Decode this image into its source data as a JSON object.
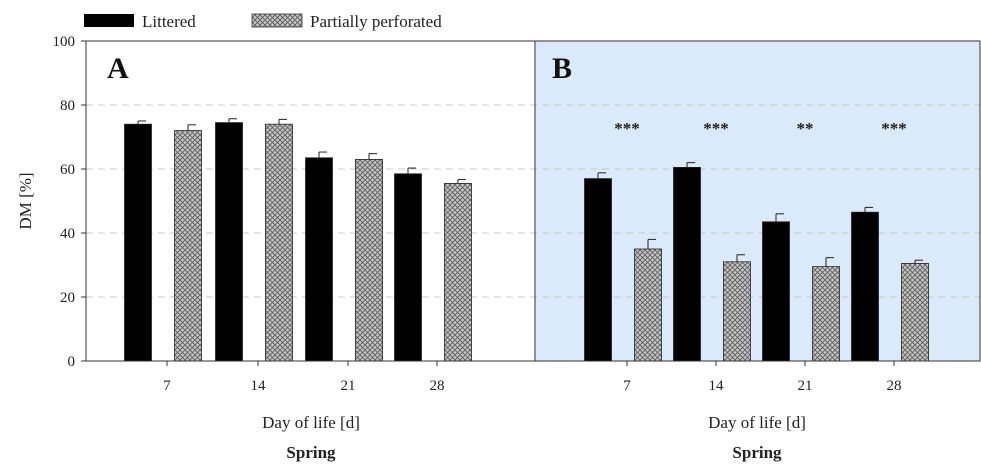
{
  "legend": {
    "items": [
      {
        "label": "Littered",
        "style": "solid",
        "color": "#000000"
      },
      {
        "label": "Partially perforated",
        "style": "crosshatch",
        "color": "#b0b0b0"
      }
    ],
    "placement": "top-left"
  },
  "y_axis": {
    "label": "DM [%]",
    "ticks": [
      "0",
      "20",
      "40",
      "60",
      "80",
      "100"
    ]
  },
  "chart_data": [
    {
      "type": "bar",
      "panel": "A",
      "title": "A",
      "xlabel": "Day of life [d]",
      "subtitle": "Spring",
      "ylabel": "DM [%]",
      "ylim": [
        0,
        100
      ],
      "grid": "dashed horizontal",
      "background": "#ffffff",
      "categories": [
        "7",
        "14",
        "21",
        "28"
      ],
      "series": [
        {
          "name": "Littered",
          "values": [
            74,
            74.5,
            63.5,
            58.5
          ],
          "errors": [
            1,
            1.2,
            1.8,
            1.8
          ]
        },
        {
          "name": "Partially perforated",
          "values": [
            72,
            74,
            63,
            55.5
          ],
          "errors": [
            1.8,
            1.5,
            1.8,
            1.2
          ]
        }
      ],
      "annotations": [
        "",
        "",
        "",
        ""
      ]
    },
    {
      "type": "bar",
      "panel": "B",
      "title": "B",
      "xlabel": "Day of life [d]",
      "subtitle": "Spring",
      "ylabel": "DM [%]",
      "ylim": [
        0,
        100
      ],
      "grid": "dashed horizontal",
      "background": "#dbeafa",
      "categories": [
        "7",
        "14",
        "21",
        "28"
      ],
      "series": [
        {
          "name": "Littered",
          "values": [
            57,
            60.5,
            43.5,
            46.5
          ],
          "errors": [
            1.8,
            1.5,
            2.5,
            1.5
          ]
        },
        {
          "name": "Partially perforated",
          "values": [
            35,
            31,
            29.5,
            30.5
          ],
          "errors": [
            3,
            2.2,
            2.8,
            1
          ]
        }
      ],
      "annotations": [
        "***",
        "***",
        "**",
        "***"
      ]
    }
  ]
}
